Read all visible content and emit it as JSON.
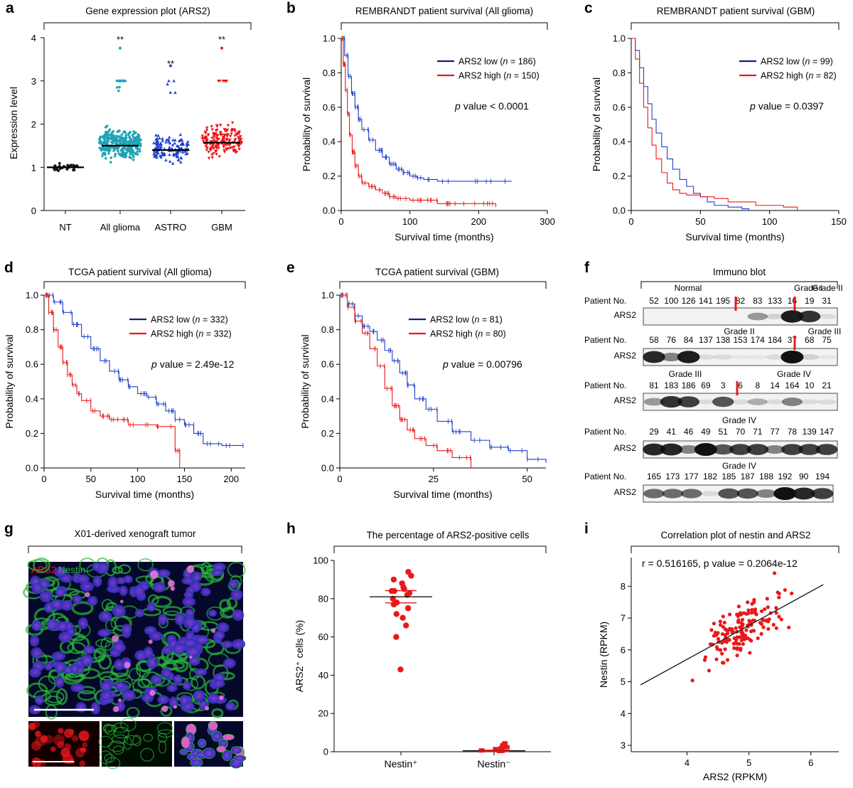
{
  "panels": {
    "a": "a",
    "b": "b",
    "c": "c",
    "d": "d",
    "e": "e",
    "f": "f",
    "g": "g",
    "h": "h",
    "i": "i"
  },
  "colors": {
    "teal": "#1fa3b5",
    "blue": "#1f3fcc",
    "red": "#e8191b",
    "navy": "#10207a",
    "black": "#111111",
    "green": "#2ab83a",
    "purple": "#7a3fd6"
  },
  "chart_data": [
    {
      "id": "a",
      "type": "scatter",
      "title": "Gene expression plot (ARS2)",
      "xlabel": "",
      "ylabel": "Expression level",
      "categories": [
        "NT",
        "All glioma",
        "ASTRO",
        "GBM"
      ],
      "ylim": [
        0,
        4
      ],
      "yticks": [
        0,
        1,
        2,
        3,
        4
      ],
      "medians": [
        1.0,
        1.5,
        1.4,
        1.57
      ],
      "annotations": [
        "",
        "**",
        "**",
        "**"
      ],
      "series_colors": [
        "#111111",
        "#1fa3b5",
        "#1f3fcc",
        "#e8191b"
      ]
    },
    {
      "id": "b",
      "type": "line",
      "title": "REMBRANDT patient survival (All glioma)",
      "xlabel": "Survival time (months)",
      "ylabel": "Probability of survival",
      "xlim": [
        0,
        300
      ],
      "xticks": [
        0,
        100,
        200,
        300
      ],
      "ylim": [
        0,
        1
      ],
      "yticks": [
        "0.0",
        "0.2",
        "0.4",
        "0.6",
        "0.8",
        "1.0"
      ],
      "series": [
        {
          "name": "ARS2 low",
          "n": "n = 186",
          "color": "#1f3fcc",
          "x": [
            0,
            5,
            10,
            15,
            20,
            25,
            30,
            40,
            50,
            60,
            70,
            80,
            90,
            100,
            110,
            120,
            140,
            160,
            200,
            248
          ],
          "y": [
            1,
            0.9,
            0.78,
            0.68,
            0.6,
            0.53,
            0.47,
            0.41,
            0.35,
            0.31,
            0.27,
            0.24,
            0.22,
            0.2,
            0.19,
            0.18,
            0.17,
            0.17,
            0.17,
            0.17
          ]
        },
        {
          "name": "ARS2 high",
          "n": "n = 150",
          "color": "#e8191b",
          "x": [
            0,
            3,
            6,
            9,
            12,
            16,
            20,
            25,
            30,
            40,
            50,
            60,
            70,
            80,
            100,
            120,
            140,
            160,
            200,
            225
          ],
          "y": [
            1,
            0.85,
            0.7,
            0.56,
            0.44,
            0.34,
            0.26,
            0.2,
            0.16,
            0.14,
            0.12,
            0.1,
            0.08,
            0.07,
            0.06,
            0.06,
            0.04,
            0.04,
            0.04,
            0.02
          ]
        }
      ],
      "stat": "value < 0.0001"
    },
    {
      "id": "c",
      "type": "line",
      "title": "REMBRANDT patient survival (GBM)",
      "xlabel": "Survival time (months)",
      "ylabel": "Probability of survival",
      "xlim": [
        0,
        150
      ],
      "xticks": [
        0,
        50,
        100,
        150
      ],
      "ylim": [
        0,
        1
      ],
      "yticks": [
        "0.0",
        "0.2",
        "0.4",
        "0.6",
        "0.8",
        "1.0"
      ],
      "series": [
        {
          "name": "ARS2 low",
          "n": "n = 99",
          "color": "#1f3fcc",
          "x": [
            0,
            3,
            6,
            9,
            12,
            15,
            18,
            22,
            26,
            30,
            35,
            40,
            45,
            50,
            55,
            60,
            70,
            80,
            85
          ],
          "y": [
            1,
            0.93,
            0.83,
            0.72,
            0.62,
            0.53,
            0.45,
            0.37,
            0.3,
            0.24,
            0.18,
            0.14,
            0.1,
            0.08,
            0.05,
            0.03,
            0.02,
            0.01,
            0.0
          ]
        },
        {
          "name": "ARS2 high",
          "n": "n = 82",
          "color": "#e8191b",
          "x": [
            0,
            3,
            6,
            9,
            12,
            15,
            18,
            22,
            26,
            30,
            35,
            40,
            50,
            60,
            70,
            90,
            110,
            120
          ],
          "y": [
            1,
            0.88,
            0.74,
            0.6,
            0.48,
            0.38,
            0.3,
            0.22,
            0.16,
            0.12,
            0.1,
            0.09,
            0.08,
            0.07,
            0.05,
            0.03,
            0.02,
            0.0
          ]
        }
      ],
      "stat": "value = 0.0397"
    },
    {
      "id": "d",
      "type": "line",
      "title": "TCGA patient survival (All glioma)",
      "xlabel": "Survival time (months)",
      "ylabel": "Probability of survival",
      "xlim": [
        0,
        215
      ],
      "xticks": [
        0,
        50,
        100,
        150,
        200
      ],
      "ylim": [
        0,
        1
      ],
      "yticks": [
        "0.0",
        "0.2",
        "0.4",
        "0.6",
        "0.8",
        "1.0"
      ],
      "series": [
        {
          "name": "ARS2 low",
          "n": "n = 332",
          "color": "#1f3fcc",
          "x": [
            0,
            10,
            20,
            30,
            40,
            50,
            60,
            70,
            80,
            90,
            100,
            110,
            120,
            130,
            140,
            150,
            160,
            170,
            190,
            213
          ],
          "y": [
            1,
            0.96,
            0.9,
            0.83,
            0.76,
            0.69,
            0.62,
            0.56,
            0.51,
            0.47,
            0.43,
            0.41,
            0.37,
            0.33,
            0.28,
            0.25,
            0.2,
            0.14,
            0.13,
            0.13
          ]
        },
        {
          "name": "ARS2 high",
          "n": "n = 332",
          "color": "#e8191b",
          "x": [
            0,
            5,
            10,
            15,
            20,
            25,
            30,
            35,
            40,
            50,
            60,
            70,
            80,
            90,
            100,
            120,
            140,
            145
          ],
          "y": [
            1,
            0.9,
            0.8,
            0.7,
            0.61,
            0.54,
            0.48,
            0.43,
            0.39,
            0.33,
            0.3,
            0.28,
            0.28,
            0.25,
            0.25,
            0.24,
            0.1,
            0.0
          ]
        }
      ],
      "stat": "value = 2.49e-12"
    },
    {
      "id": "e",
      "type": "line",
      "title": "TCGA patient survival (GBM)",
      "xlabel": "Survival time (months)",
      "ylabel": "Probability of survival",
      "xlim": [
        0,
        55
      ],
      "xticks": [
        0,
        25,
        50
      ],
      "ylim": [
        0,
        1
      ],
      "yticks": [
        "0.0",
        "0.2",
        "0.4",
        "0.6",
        "0.8",
        "1.0"
      ],
      "series": [
        {
          "name": "ARS2 low",
          "n": "n = 81",
          "color": "#1f3fcc",
          "x": [
            0,
            2,
            4,
            6,
            8,
            10,
            12,
            14,
            16,
            18,
            20,
            23,
            26,
            30,
            35,
            40,
            45,
            50,
            55
          ],
          "y": [
            1,
            0.95,
            0.88,
            0.82,
            0.79,
            0.74,
            0.68,
            0.62,
            0.55,
            0.48,
            0.4,
            0.34,
            0.27,
            0.21,
            0.16,
            0.12,
            0.1,
            0.05,
            0.03
          ]
        },
        {
          "name": "ARS2 high",
          "n": "n = 80",
          "color": "#e8191b",
          "x": [
            0,
            2,
            4,
            6,
            8,
            10,
            12,
            14,
            16,
            18,
            20,
            23,
            26,
            30,
            35
          ],
          "y": [
            1,
            0.93,
            0.85,
            0.78,
            0.69,
            0.59,
            0.46,
            0.36,
            0.28,
            0.22,
            0.17,
            0.13,
            0.1,
            0.06,
            0.0
          ]
        }
      ],
      "stat": "value = 0.00796"
    },
    {
      "id": "h",
      "type": "scatter",
      "title": "The percentage of ARS2-positive cells",
      "xlabel": "",
      "ylabel": "ARS2⁺ cells (%)",
      "categories": [
        "Nestin⁺",
        "Nestin⁻"
      ],
      "ylim": [
        0,
        100
      ],
      "yticks": [
        0,
        20,
        40,
        60,
        80,
        100
      ],
      "points": [
        [
          94,
          92,
          90,
          88,
          86,
          85,
          84,
          84,
          83,
          82,
          80,
          78,
          77,
          75,
          72,
          70,
          66,
          60,
          43
        ],
        [
          4,
          3,
          2,
          1.5,
          1,
          0.8,
          0.5,
          0.3,
          0.2,
          0.1,
          0
        ]
      ],
      "mean": [
        81,
        0.5
      ],
      "sem": [
        3.2,
        0.3
      ],
      "color": "#e8191b"
    },
    {
      "id": "i",
      "type": "scatter",
      "title": "Correlation plot of nestin and ARS2",
      "xlabel": "ARS2 (RPKM)",
      "ylabel": "Nestin (RPKM)",
      "xlim": [
        3.1,
        6.45
      ],
      "xticks": [
        4,
        5,
        6
      ],
      "ylim": [
        2.8,
        8.9
      ],
      "yticks": [
        3,
        4,
        5,
        6,
        7,
        8
      ],
      "annotation": "r = 0.516165, p value = 0.2064e-12",
      "fit": {
        "x1": 3.25,
        "y1": 4.9,
        "x2": 6.2,
        "y2": 8.05
      },
      "color": "#e8191b"
    }
  ],
  "blot": {
    "title": "Immuno blot",
    "rows": [
      {
        "groups": [
          "Normal",
          "Grade I",
          "Grade II"
        ],
        "prefix": "Patient No.",
        "numbers": [
          "52",
          "100",
          "126",
          "141",
          "195",
          "82",
          "83",
          "133",
          "16",
          "19",
          "31"
        ],
        "band": "ARS2"
      },
      {
        "groups": [
          "Grade II",
          "Grade III"
        ],
        "prefix": "Patient No.",
        "numbers": [
          "58",
          "76",
          "84",
          "137",
          "138",
          "153",
          "174",
          "184",
          "37",
          "68",
          "75"
        ],
        "band": "ARS2"
      },
      {
        "groups": [
          "Grade III",
          "Grade IV"
        ],
        "prefix": "Patient No.",
        "numbers": [
          "81",
          "183",
          "186",
          "69",
          "3",
          "6",
          "8",
          "14",
          "164",
          "10",
          "21"
        ],
        "band": "ARS2"
      },
      {
        "groups": [
          "Grade IV"
        ],
        "prefix": "Patient No.",
        "numbers": [
          "29",
          "41",
          "46",
          "49",
          "51",
          "70",
          "71",
          "77",
          "78",
          "139",
          "147"
        ],
        "band": "ARS2"
      },
      {
        "groups": [
          "Grade IV"
        ],
        "prefix": "Patient No.",
        "numbers": [
          "165",
          "173",
          "177",
          "182",
          "185",
          "187",
          "188",
          "192",
          "90",
          "194"
        ],
        "band": "ARS2"
      }
    ]
  },
  "micrograph": {
    "title": "X01-derived xenograft tumor",
    "stain_ars2": "ARS2",
    "stain_nestin": "Nestin"
  }
}
